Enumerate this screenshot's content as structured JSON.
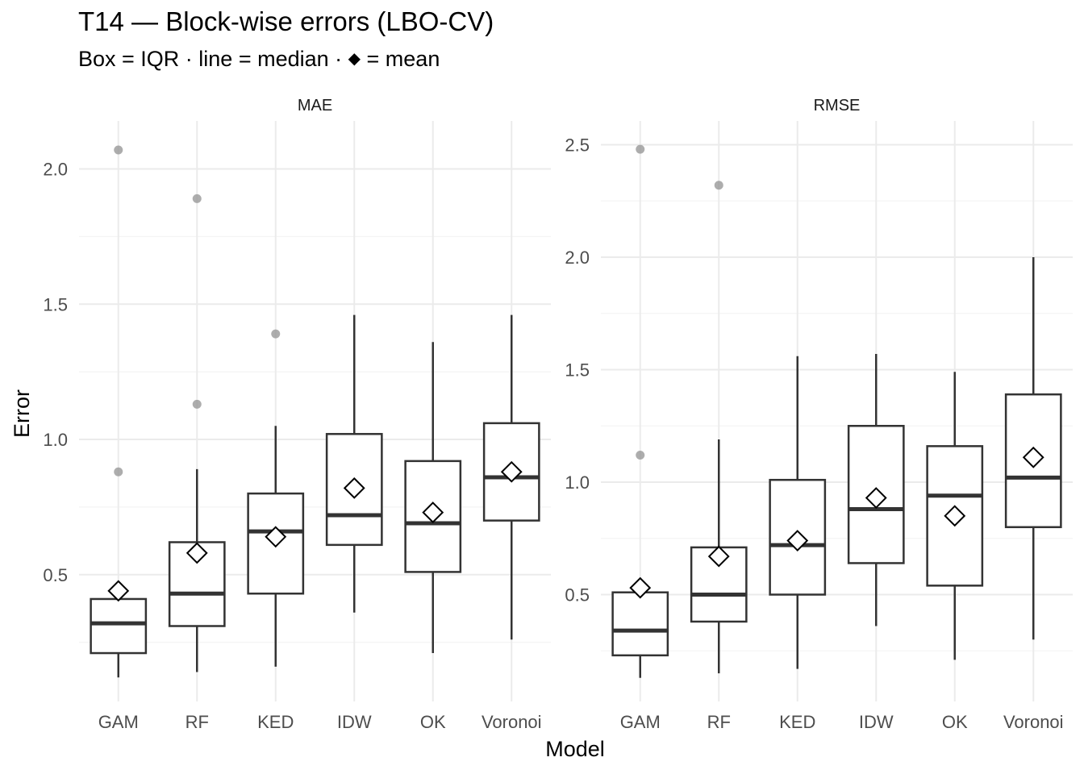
{
  "title": "T14 — Block-wise errors (LBO-CV)",
  "subtitle_parts": {
    "before": "Box = IQR · line = median · ",
    "marker": "◆",
    "after": " = mean"
  },
  "xlabel": "Model",
  "ylabel": "Error",
  "colors": {
    "box_line": "#333333",
    "grid_major": "#ebebeb",
    "grid_minor": "#f4f4f4",
    "outlier": "#999999",
    "axis_text": "#4d4d4d"
  },
  "chart_data": [
    {
      "type": "box",
      "panel": "MAE",
      "categories": [
        "GAM",
        "RF",
        "KED",
        "IDW",
        "OK",
        "Voronoi"
      ],
      "ylim": [
        0.0,
        2.15
      ],
      "yticks": [
        0.5,
        1.0,
        1.5,
        2.0
      ],
      "ytick_labels": [
        "0.5",
        "1.0",
        "1.5",
        "2.0"
      ],
      "boxes": [
        {
          "model": "GAM",
          "lower_whisker": 0.12,
          "q1": 0.21,
          "median": 0.32,
          "q3": 0.41,
          "upper_whisker": 0.41,
          "mean": 0.44,
          "outliers": [
            0.88,
            2.07
          ]
        },
        {
          "model": "RF",
          "lower_whisker": 0.14,
          "q1": 0.31,
          "median": 0.43,
          "q3": 0.62,
          "upper_whisker": 0.89,
          "mean": 0.58,
          "outliers": [
            1.13,
            1.89
          ]
        },
        {
          "model": "KED",
          "lower_whisker": 0.16,
          "q1": 0.43,
          "median": 0.66,
          "q3": 0.8,
          "upper_whisker": 1.05,
          "mean": 0.64,
          "outliers": [
            1.39
          ]
        },
        {
          "model": "IDW",
          "lower_whisker": 0.36,
          "q1": 0.61,
          "median": 0.72,
          "q3": 1.02,
          "upper_whisker": 1.46,
          "mean": 0.82,
          "outliers": []
        },
        {
          "model": "OK",
          "lower_whisker": 0.21,
          "q1": 0.51,
          "median": 0.69,
          "q3": 0.92,
          "upper_whisker": 1.36,
          "mean": 0.73,
          "outliers": []
        },
        {
          "model": "Voronoi",
          "lower_whisker": 0.26,
          "q1": 0.7,
          "median": 0.86,
          "q3": 1.06,
          "upper_whisker": 1.46,
          "mean": 0.88,
          "outliers": []
        }
      ]
    },
    {
      "type": "box",
      "panel": "RMSE",
      "categories": [
        "GAM",
        "RF",
        "KED",
        "IDW",
        "OK",
        "Voronoi"
      ],
      "ylim": [
        0.0,
        2.6
      ],
      "yticks": [
        0.5,
        1.0,
        1.5,
        2.0,
        2.5
      ],
      "ytick_labels": [
        "0.5",
        "1.0",
        "1.5",
        "2.0",
        "2.5"
      ],
      "boxes": [
        {
          "model": "GAM",
          "lower_whisker": 0.13,
          "q1": 0.23,
          "median": 0.34,
          "q3": 0.51,
          "upper_whisker": 0.51,
          "mean": 0.53,
          "outliers": [
            1.12,
            2.48
          ]
        },
        {
          "model": "RF",
          "lower_whisker": 0.15,
          "q1": 0.38,
          "median": 0.5,
          "q3": 0.71,
          "upper_whisker": 1.19,
          "mean": 0.67,
          "outliers": [
            2.32
          ]
        },
        {
          "model": "KED",
          "lower_whisker": 0.17,
          "q1": 0.5,
          "median": 0.72,
          "q3": 1.01,
          "upper_whisker": 1.56,
          "mean": 0.74,
          "outliers": []
        },
        {
          "model": "IDW",
          "lower_whisker": 0.36,
          "q1": 0.64,
          "median": 0.88,
          "q3": 1.25,
          "upper_whisker": 1.57,
          "mean": 0.93,
          "outliers": []
        },
        {
          "model": "OK",
          "lower_whisker": 0.21,
          "q1": 0.54,
          "median": 0.94,
          "q3": 1.16,
          "upper_whisker": 1.49,
          "mean": 0.85,
          "outliers": []
        },
        {
          "model": "Voronoi",
          "lower_whisker": 0.3,
          "q1": 0.8,
          "median": 1.02,
          "q3": 1.39,
          "upper_whisker": 2.0,
          "mean": 1.11,
          "outliers": []
        }
      ]
    }
  ]
}
